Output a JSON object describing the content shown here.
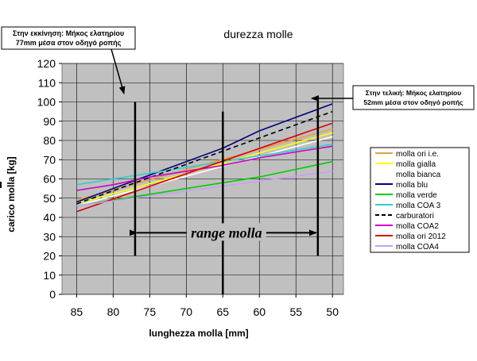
{
  "chart_data": {
    "type": "line",
    "title": "durezza molle",
    "xlabel": "lunghezza molla [mm]",
    "ylabel": "carico molla [kg]",
    "x_reversed": true,
    "xlim": [
      87,
      48.5
    ],
    "ylim": [
      0,
      120
    ],
    "x_ticks": [
      85,
      80,
      75,
      70,
      65,
      60,
      55,
      50
    ],
    "y_ticks": [
      0,
      10,
      20,
      30,
      40,
      50,
      60,
      70,
      80,
      90,
      100,
      110,
      120
    ],
    "grid": true,
    "plot_background": "#c0c0c0",
    "legend_placement": "right",
    "series": [
      {
        "name": "molla ori i.e.",
        "color": "#e8a040",
        "dash": false,
        "x": [
          85,
          50
        ],
        "y": [
          49,
          86
        ]
      },
      {
        "name": "molla gialla",
        "color": "#ffff00",
        "dash": false,
        "x": [
          85,
          50
        ],
        "y": [
          47,
          84
        ]
      },
      {
        "name": "molla bianca",
        "color": "#ffffff",
        "dash": false,
        "x": [
          85,
          50
        ],
        "y": [
          46,
          82
        ]
      },
      {
        "name": "molla blu",
        "color": "#000080",
        "dash": false,
        "x": [
          85,
          80,
          75,
          70,
          65,
          60,
          55,
          50
        ],
        "y": [
          48,
          55,
          62,
          69,
          76,
          85,
          92,
          99
        ]
      },
      {
        "name": "molla verde",
        "color": "#00cc00",
        "dash": false,
        "x": [
          85,
          80,
          75,
          70,
          65,
          60,
          55,
          50
        ],
        "y": [
          46,
          49,
          52,
          55,
          58,
          61,
          65,
          69
        ]
      },
      {
        "name": "molla COA 3",
        "color": "#33cccc",
        "dash": false,
        "x": [
          85,
          50
        ],
        "y": [
          57,
          78
        ]
      },
      {
        "name": "carburatori",
        "color": "#000000",
        "dash": true,
        "x": [
          85,
          50
        ],
        "y": [
          47,
          95
        ]
      },
      {
        "name": "molla COA2",
        "color": "#cc00cc",
        "dash": false,
        "x": [
          85,
          80,
          75,
          70,
          65,
          60,
          55,
          50
        ],
        "y": [
          54,
          57,
          61,
          64,
          67,
          71,
          74,
          77
        ]
      },
      {
        "name": "molla ori 2012",
        "color": "#dd0000",
        "dash": false,
        "x": [
          85,
          50
        ],
        "y": [
          43,
          89
        ]
      },
      {
        "name": "molla COA4",
        "color": "#c8a0f0",
        "dash": false,
        "x": [
          85,
          50
        ],
        "y": [
          46,
          64
        ]
      }
    ],
    "vertical_lines": [
      {
        "x": 77,
        "y_from": 20,
        "y_to": 100
      },
      {
        "x": 65,
        "y_from": 0,
        "y_to": 95
      },
      {
        "x": 52,
        "y_from": 20,
        "y_to": 103
      }
    ],
    "range_arrow": {
      "x_from": 77,
      "x_to": 52,
      "y": 32,
      "label": "range molla"
    },
    "annotations": {
      "start_line1": "Στην εκκίνηση: Μήκος ελατηρίου",
      "start_line2": "77mm μέσα στον οδηγό ροπής",
      "end_line1": "Στην τελική: Μήκος ελατηρίου",
      "end_line2": "52mm μέσα στον οδηγό ροπής"
    }
  }
}
